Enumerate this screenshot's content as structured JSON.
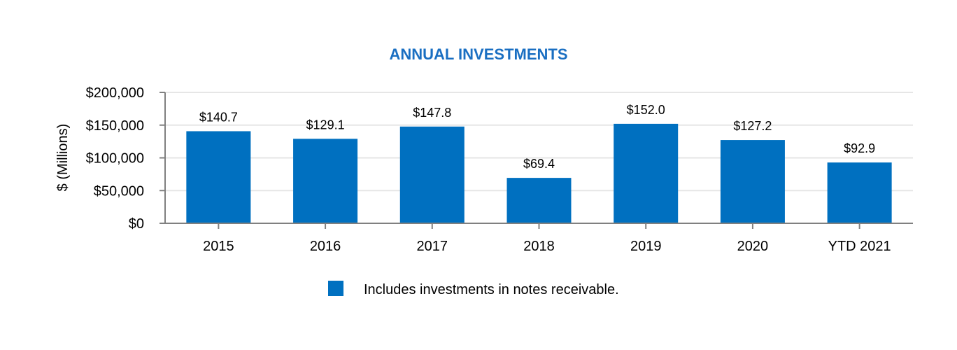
{
  "chart_data": {
    "type": "bar",
    "title": "ANNUAL INVESTMENTS",
    "ylabel": "$ (Millions)",
    "xlabel": "",
    "categories": [
      "2015",
      "2016",
      "2017",
      "2018",
      "2019",
      "2020",
      "YTD 2021"
    ],
    "values": [
      140700,
      129100,
      147800,
      69400,
      152000,
      127200,
      92900
    ],
    "data_labels": [
      "$140.7",
      "$129.1",
      "$147.8",
      "$69.4",
      "$152.0",
      "$127.2",
      "$92.9"
    ],
    "yticks": [
      0,
      50000,
      100000,
      150000,
      200000
    ],
    "ytick_labels": [
      "$0",
      "$50,000",
      "$100,000",
      "$150,000",
      "$200,000"
    ],
    "ylim": [
      0,
      200000
    ],
    "grid": true,
    "legend": {
      "placement": "bottom",
      "entries": [
        {
          "label": "Includes investments in notes receivable.",
          "color": "#0070c0"
        }
      ]
    },
    "colors": {
      "bar": "#0070c0",
      "title": "#1a6fc2",
      "grid": "#e6e6e6",
      "axis": "#808080"
    }
  }
}
